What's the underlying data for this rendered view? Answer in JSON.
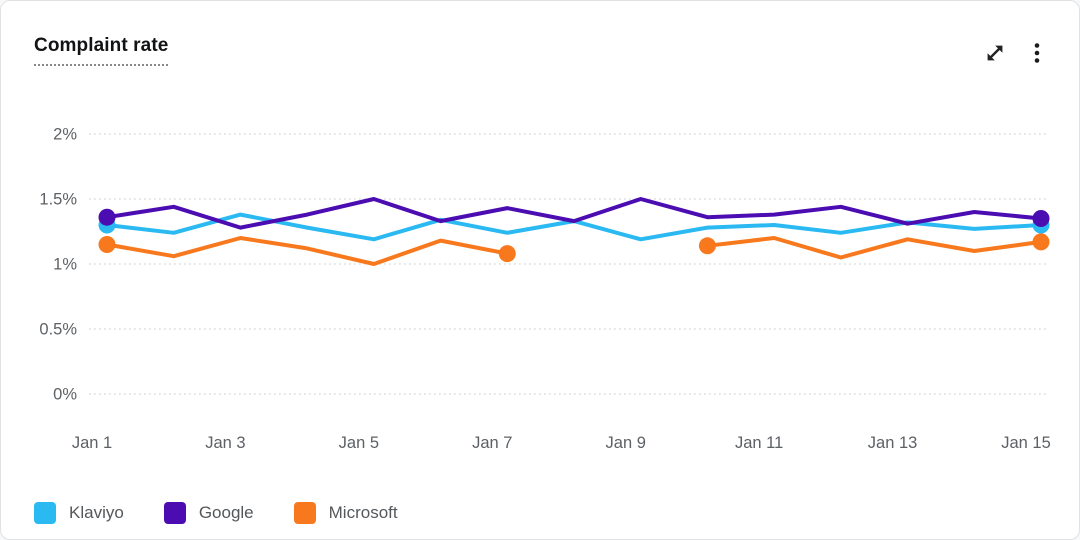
{
  "header": {
    "title": "Complaint rate"
  },
  "chart_data": {
    "type": "line",
    "title": "Complaint rate",
    "categories": [
      "Jan 1",
      "Jan 2",
      "Jan 3",
      "Jan 4",
      "Jan 5",
      "Jan 6",
      "Jan 7",
      "Jan 8",
      "Jan 9",
      "Jan 10",
      "Jan 11",
      "Jan 12",
      "Jan 13",
      "Jan 14",
      "Jan 15"
    ],
    "x_tick_step": 2,
    "x_tick_labels_shown": [
      "Jan 1",
      "Jan 3",
      "Jan 5",
      "Jan 7",
      "Jan 9",
      "Jan 11",
      "Jan 13",
      "Jan 15"
    ],
    "y_ticks": [
      "0%",
      "0.5%",
      "1%",
      "1.5%",
      "2%"
    ],
    "ylim": [
      0,
      2
    ],
    "unit": "%",
    "grid": "horizontal-dotted",
    "legend_position": "bottom-left",
    "draw_order": [
      2,
      0,
      1
    ],
    "series": [
      {
        "name": "Klaviyo",
        "color": "#2BB9F2",
        "values": [
          1.3,
          1.24,
          1.38,
          1.28,
          1.19,
          1.34,
          1.24,
          1.33,
          1.19,
          1.28,
          1.3,
          1.24,
          1.32,
          1.27,
          1.3
        ],
        "markers": [
          0,
          14
        ]
      },
      {
        "name": "Google",
        "color": "#4B0DB2",
        "values": [
          1.36,
          1.44,
          1.28,
          1.38,
          1.5,
          1.33,
          1.43,
          1.33,
          1.5,
          1.36,
          1.38,
          1.44,
          1.31,
          1.4,
          1.35
        ],
        "markers": [
          0,
          14
        ]
      },
      {
        "name": "Microsoft",
        "color": "#F8791D",
        "values": [
          1.15,
          1.06,
          1.2,
          1.12,
          1.0,
          1.18,
          1.08,
          null,
          null,
          1.14,
          1.2,
          1.05,
          1.19,
          1.1,
          1.17
        ],
        "markers": [
          0,
          6,
          9,
          14
        ]
      }
    ]
  }
}
